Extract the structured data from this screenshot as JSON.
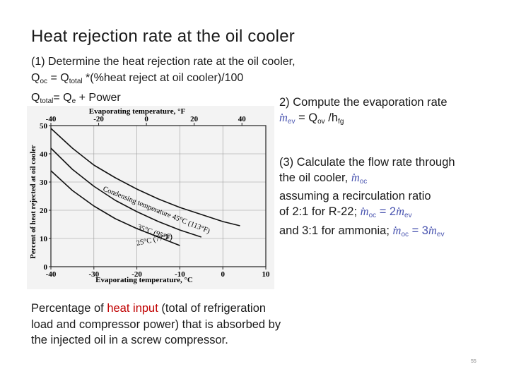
{
  "slide": {
    "title": "Heat rejection rate at the oil cooler",
    "page_number": "55"
  },
  "step1": {
    "line1": "(1) Determine the heat rejection rate at the oil cooler,",
    "eq1_a": "Q",
    "eq1_a_sub": "oc",
    "eq1_b": " = Q",
    "eq1_b_sub": "total",
    "eq1_c": " *(%heat reject at oil cooler)/100",
    "eq2_a": "Q",
    "eq2_a_sub": "total",
    "eq2_b": "= Q",
    "eq2_b_sub": "e",
    "eq2_c": " + Power"
  },
  "step2": {
    "line1": "2) Compute the evaporation rate",
    "m": "m",
    "m_sub": "ev",
    "eq_mid": " = Q",
    "eq_mid_sub": "ov",
    "eq_end": " /h",
    "eq_end_sub": "fg"
  },
  "step3": {
    "line1": "(3) Calculate the flow rate through",
    "line2_a": "the oil cooler, ",
    "line2_m": "m",
    "line2_m_sub": "oc",
    "line3": "assuming a recirculation ratio",
    "line4_a": "of 2:1 for R-22; ",
    "line4_m": "m",
    "line4_m_sub": "oc",
    "line4_eq": " = 2",
    "line4_m2": "m",
    "line4_m2_sub": "ev",
    "line5_a": "and 3:1 for ammonia;  ",
    "line5_m": "m",
    "line5_m_sub": "oc",
    "line5_eq": " = 3",
    "line5_m2": "m",
    "line5_m2_sub": "ev"
  },
  "caption": {
    "line1_a": "Percentage of ",
    "line1_red": "heat input",
    "line1_b": " (total of refrigeration",
    "line2": "load and compressor power) that is absorbed by",
    "line3": "the injected oil in a screw compressor."
  },
  "chart_data": {
    "type": "line",
    "top_axis_label": "Evaporating temperature, °F",
    "top_ticks": [
      "-40",
      "-20",
      "0",
      "20",
      "40"
    ],
    "top_tick_values_F": [
      -40,
      -20,
      0,
      20,
      40
    ],
    "xlabel": "Evaporating temperature, °C",
    "x_ticks": [
      "-40",
      "-30",
      "-20",
      "-10",
      "0",
      "10"
    ],
    "x_tick_values": [
      -40,
      -30,
      -20,
      -10,
      0,
      10
    ],
    "ylabel": "Percent of heat rejected at oil cooler",
    "y_ticks": [
      "0",
      "10",
      "20",
      "30",
      "40",
      "50"
    ],
    "y_tick_values": [
      0,
      10,
      20,
      30,
      40,
      50
    ],
    "xlim": [
      -40,
      10
    ],
    "ylim": [
      0,
      50
    ],
    "grid": true,
    "series": [
      {
        "name": "Condensing temperature 45°C (113°F)",
        "x": [
          -40,
          -35,
          -30,
          -25,
          -20,
          -15,
          -10,
          -5,
          0,
          4
        ],
        "y": [
          49,
          42,
          36,
          31.5,
          27.5,
          24,
          21,
          18.5,
          16,
          14.5
        ]
      },
      {
        "name": "35°C (95°F)",
        "x": [
          -40,
          -35,
          -30,
          -25,
          -20,
          -15,
          -10,
          -5
        ],
        "y": [
          42,
          34.5,
          28.5,
          23.5,
          19.5,
          16,
          13,
          10.5
        ]
      },
      {
        "name": "25°C (77°F)",
        "x": [
          -40,
          -35,
          -30,
          -25,
          -20,
          -15,
          -10
        ],
        "y": [
          34,
          27,
          21.5,
          17,
          13.5,
          10.5,
          7.5
        ]
      }
    ],
    "annotations": [
      {
        "text": "Condensing temperature 45°C (113°F)"
      },
      {
        "text": "35°C (95°F)"
      },
      {
        "text": "25°C (77°F)"
      }
    ]
  }
}
